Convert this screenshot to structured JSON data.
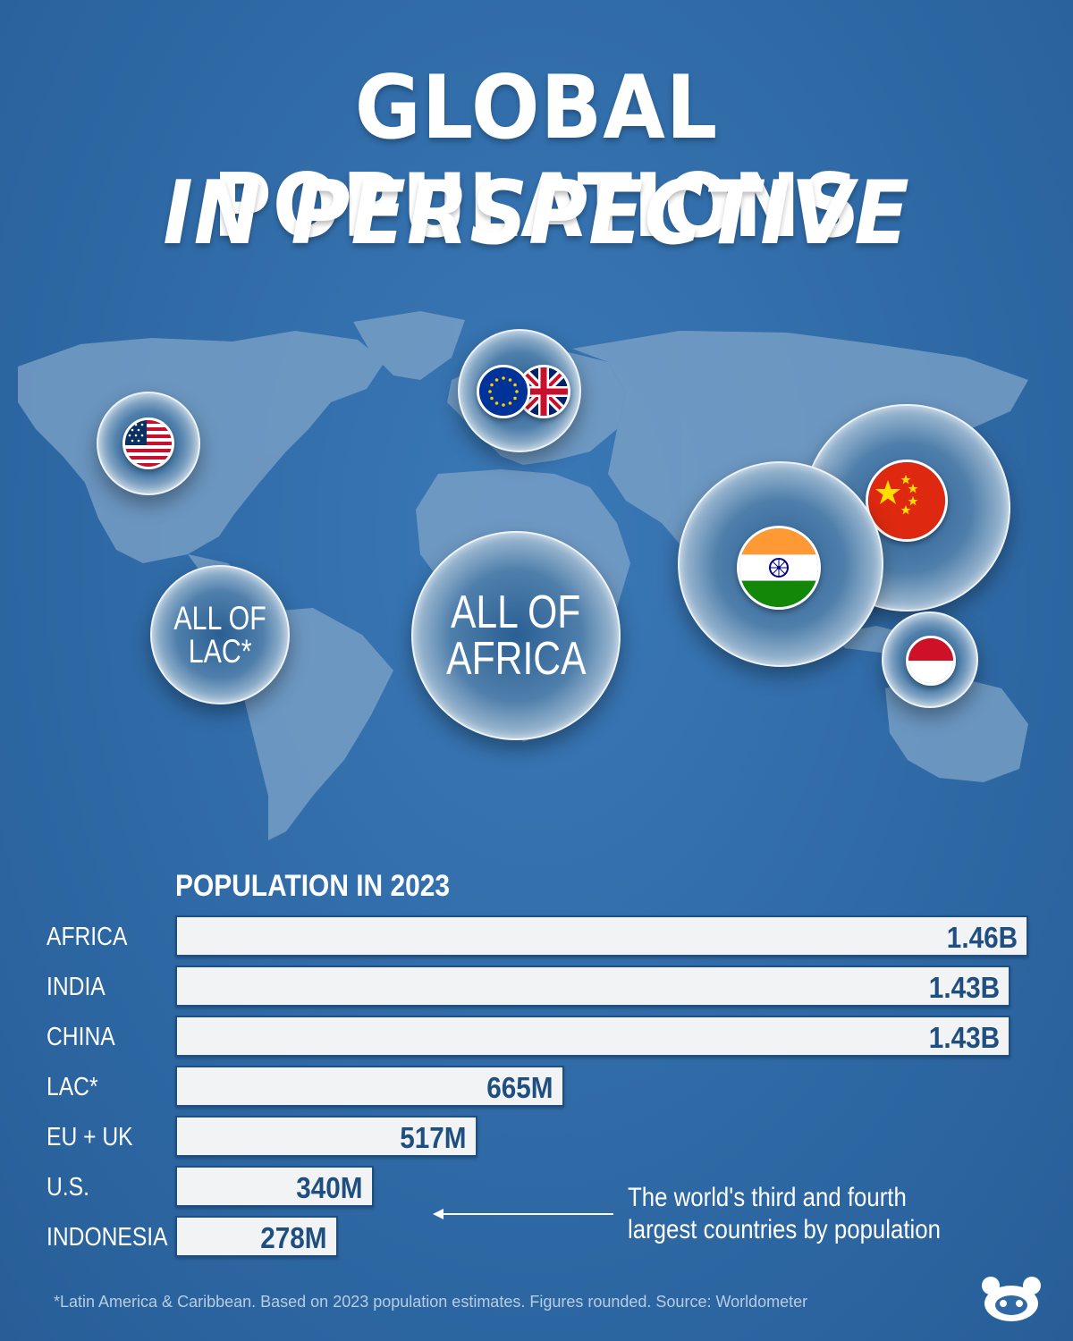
{
  "title": {
    "line1": "GLOBAL POPULATIONS",
    "line2": "IN PERSPECTIVE"
  },
  "map_bubbles": {
    "lac": {
      "text": "ALL OF LAC*",
      "line1": "ALL OF",
      "line2": "LAC*"
    },
    "africa": {
      "text": "ALL OF AFRICA",
      "line1": "ALL OF",
      "line2": "AFRICA"
    },
    "flags": [
      "us-flag",
      "eu-flag",
      "uk-flag",
      "china-flag",
      "india-flag",
      "indonesia-flag"
    ]
  },
  "chart_data": {
    "type": "bar",
    "orientation": "horizontal",
    "title": "POPULATION IN 2023",
    "categories": [
      "AFRICA",
      "INDIA",
      "CHINA",
      "LAC*",
      "EU + UK",
      "U.S.",
      "INDONESIA"
    ],
    "values": [
      1.46,
      1.43,
      1.43,
      0.665,
      0.517,
      0.34,
      0.278
    ],
    "value_labels": [
      "1.46B",
      "1.43B",
      "1.43B",
      "665M",
      "517M",
      "340M",
      "278M"
    ],
    "units": "billions",
    "xlim": [
      0,
      1.46
    ],
    "grid": false,
    "annotation": {
      "line1": "The world's third and fourth",
      "line2": "largest countries by population"
    }
  },
  "footnote": "*Latin America & Caribbean. Based on 2023 population estimates. Figures rounded. Source: Worldometer",
  "colors": {
    "background": "#2f6aa6",
    "bar": "#f1f3f4",
    "value_text": "#1f4f80",
    "land": "#7da2c6"
  }
}
